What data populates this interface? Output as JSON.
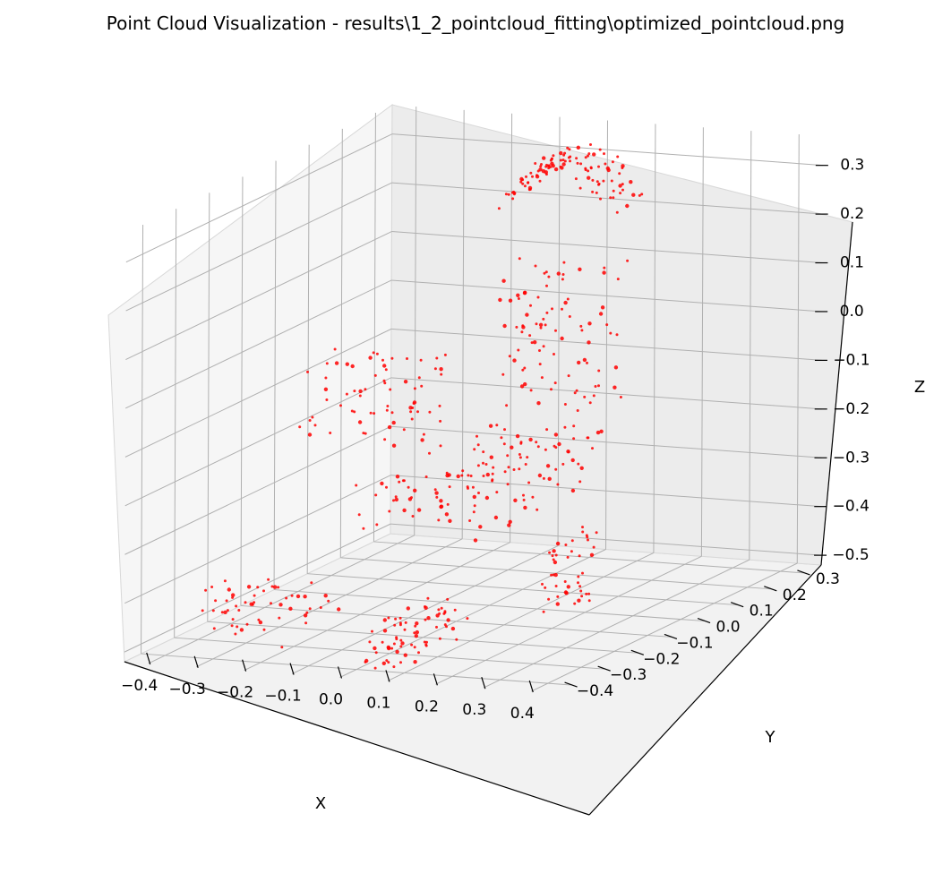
{
  "window": {
    "title": "Point Cloud Visualization - results\\1_2_pointcloud_fitting\\optimized_pointcloud.png"
  },
  "chart_data": {
    "type": "scatter",
    "projection": "3d",
    "title": "Point Cloud Visualization - results\\1_2_pointcloud_fitting\\optimized_pointcloud.png",
    "xlabel": "X",
    "ylabel": "Y",
    "zlabel": "Z",
    "xlim": [
      -0.45,
      0.45
    ],
    "ylim": [
      -0.45,
      0.35
    ],
    "zlim": [
      -0.52,
      0.36
    ],
    "xticks": [
      -0.4,
      -0.3,
      -0.2,
      -0.1,
      0.0,
      0.1,
      0.2,
      0.3,
      0.4
    ],
    "yticks": [
      -0.4,
      -0.3,
      -0.2,
      -0.1,
      0.0,
      0.1,
      0.2,
      0.3
    ],
    "zticks": [
      -0.5,
      -0.4,
      -0.3,
      -0.2,
      -0.1,
      0.0,
      0.1,
      0.2,
      0.3
    ],
    "xtick_labels": [
      "−0.4",
      "−0.3",
      "−0.2",
      "−0.1",
      "0.0",
      "0.1",
      "0.2",
      "0.3",
      "0.4"
    ],
    "ytick_labels": [
      "−0.4",
      "−0.3",
      "−0.2",
      "−0.1",
      "0.0",
      "0.1",
      "0.2",
      "0.3"
    ],
    "ztick_labels": [
      "−0.5",
      "−0.4",
      "−0.3",
      "−0.2",
      "−0.1",
      "0.0",
      "0.1",
      "0.2",
      "0.3"
    ],
    "grid": true,
    "marker_color": "#ff0000",
    "pane_colors": {
      "floor": "#f2f2f2",
      "left_wall": "#f6f6f6",
      "back_wall": "#ececec",
      "grid": "#b0b0b0"
    },
    "series": [
      {
        "point_groups": [
          {
            "part": "backrest-curve",
            "count": 110,
            "x": [
              -0.12,
              0.12
            ],
            "y": [
              0.18,
              0.3
            ],
            "z": [
              0.1,
              0.34
            ]
          },
          {
            "part": "backrest-panel",
            "count": 90,
            "x": [
              -0.12,
              0.1
            ],
            "y": [
              0.18,
              0.28
            ],
            "z": [
              -0.18,
              0.12
            ]
          },
          {
            "part": "seat",
            "count": 130,
            "x": [
              -0.15,
              0.12
            ],
            "y": [
              -0.2,
              0.22
            ],
            "z": [
              -0.32,
              -0.2
            ]
          },
          {
            "part": "left-armrest",
            "count": 70,
            "x": [
              -0.4,
              -0.13
            ],
            "y": [
              -0.05,
              0.12
            ],
            "z": [
              -0.2,
              -0.05
            ]
          },
          {
            "part": "left-front-leg",
            "count": 55,
            "x": [
              -0.4,
              -0.17
            ],
            "y": [
              -0.32,
              -0.18
            ],
            "z": [
              -0.52,
              -0.4
            ]
          },
          {
            "part": "right-front-leg",
            "count": 70,
            "x": [
              0.0,
              0.12
            ],
            "y": [
              -0.42,
              -0.22
            ],
            "z": [
              -0.52,
              -0.42
            ]
          },
          {
            "part": "right-rear-leg",
            "count": 45,
            "x": [
              0.16,
              0.2
            ],
            "y": [
              -0.1,
              0.05
            ],
            "z": [
              -0.52,
              -0.35
            ]
          }
        ]
      }
    ]
  }
}
